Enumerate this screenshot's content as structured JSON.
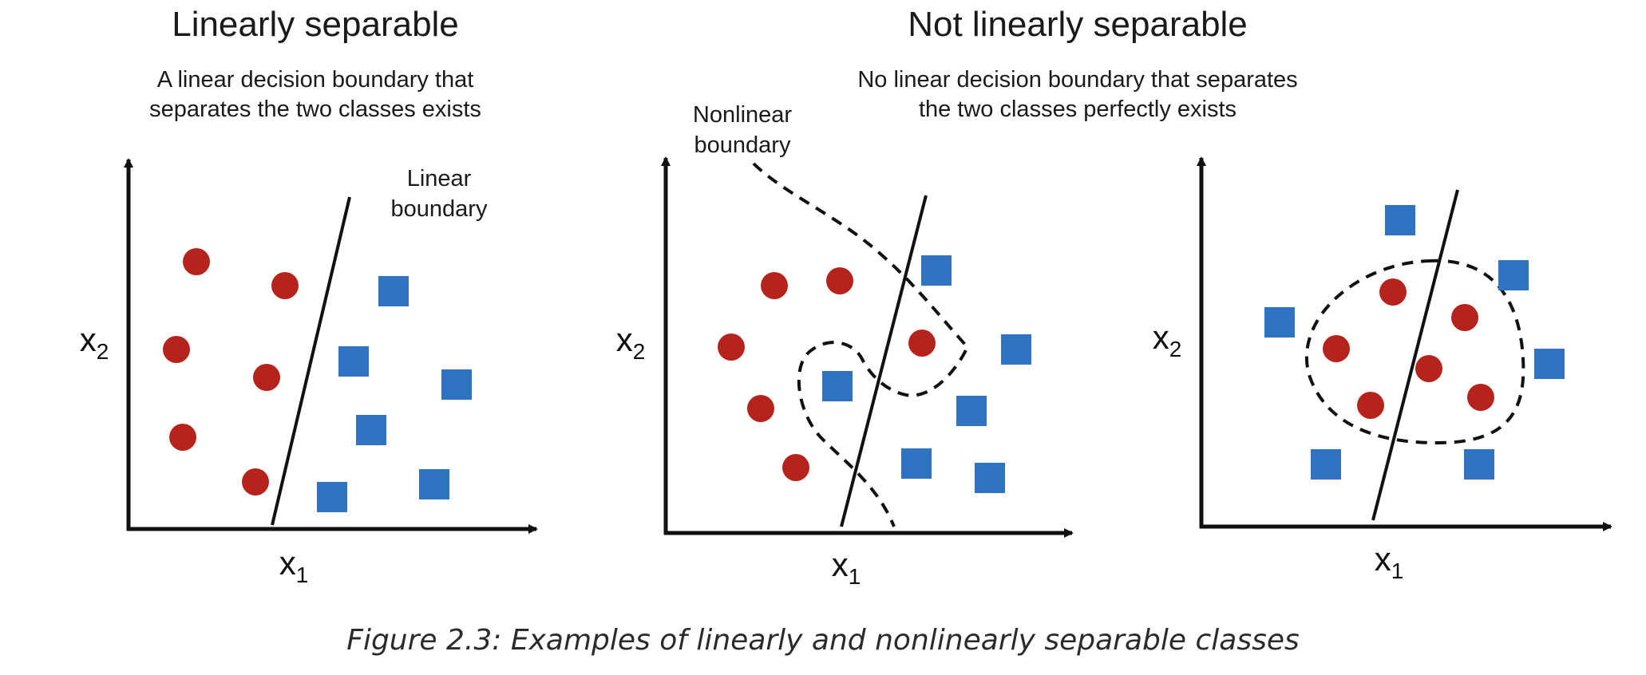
{
  "panels": {
    "left": {
      "heading": "Linearly separable",
      "subtitle_lines": [
        "A linear decision boundary that",
        "separates the two classes exists"
      ],
      "boundary_label_lines": [
        "Linear",
        "boundary"
      ],
      "xlabel": "x",
      "xlabel_sub": "1",
      "ylabel": "x",
      "ylabel_sub": "2"
    },
    "right_group": {
      "heading": "Not linearly separable",
      "subtitle_lines": [
        "No linear decision boundary that separates",
        "the two classes perfectly exists"
      ]
    },
    "middle": {
      "boundary_label_lines": [
        "Nonlinear",
        "boundary"
      ],
      "xlabel": "x",
      "xlabel_sub": "1",
      "ylabel": "x",
      "ylabel_sub": "2"
    },
    "right": {
      "xlabel": "x",
      "xlabel_sub": "1",
      "ylabel": "x",
      "ylabel_sub": "2"
    }
  },
  "caption": "Figure 2.3: Examples of linearly and nonlinearly separable classes",
  "colors": {
    "circle": "#b5231c",
    "square": "#2f74c0",
    "axis": "#111111",
    "boundary": "#111111"
  }
}
